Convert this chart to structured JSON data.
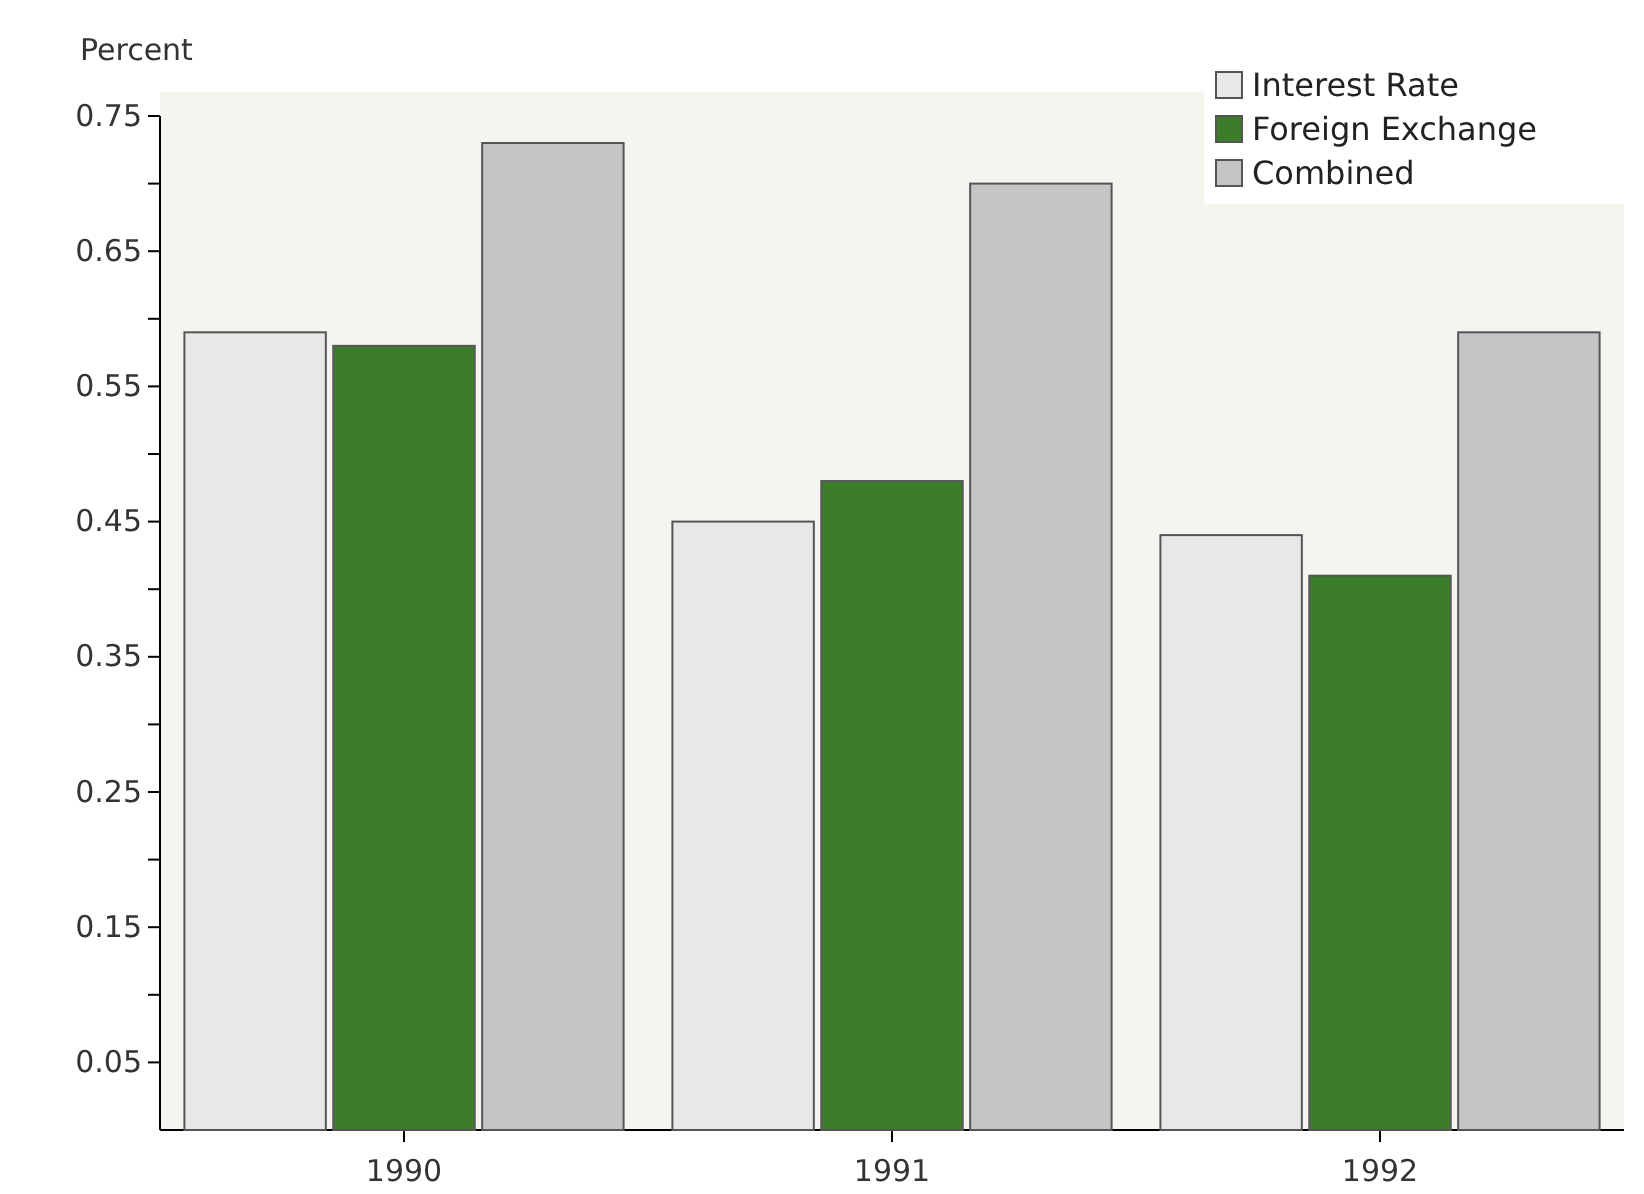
{
  "chart_data": {
    "type": "bar",
    "ylabel": "Percent",
    "categories": [
      "1990",
      "1991",
      "1992"
    ],
    "series": [
      {
        "name": "Interest Rate",
        "color": "#e6e9e6",
        "values": [
          0.59,
          0.45,
          0.44
        ]
      },
      {
        "name": "Foreign Exchange",
        "color": "#3c7d2c",
        "values": [
          0.58,
          0.48,
          0.41
        ]
      },
      {
        "name": "Combined",
        "color": "#c3c5c7",
        "values": [
          0.73,
          0.7,
          0.59
        ]
      }
    ],
    "ylim": [
      0,
      0.75
    ],
    "yticks": [
      0.05,
      {
        "value": 0.1,
        "label": null
      },
      0.15,
      {
        "value": 0.2,
        "label": null
      },
      0.25,
      {
        "value": 0.3,
        "label": null
      },
      0.35,
      {
        "value": 0.4,
        "label": null
      },
      0.45,
      {
        "value": 0.5,
        "label": null
      },
      0.55,
      {
        "value": 0.6,
        "label": null
      },
      0.65,
      {
        "value": 0.7,
        "label": null
      },
      0.75
    ],
    "grid": false,
    "legend": "top right"
  }
}
